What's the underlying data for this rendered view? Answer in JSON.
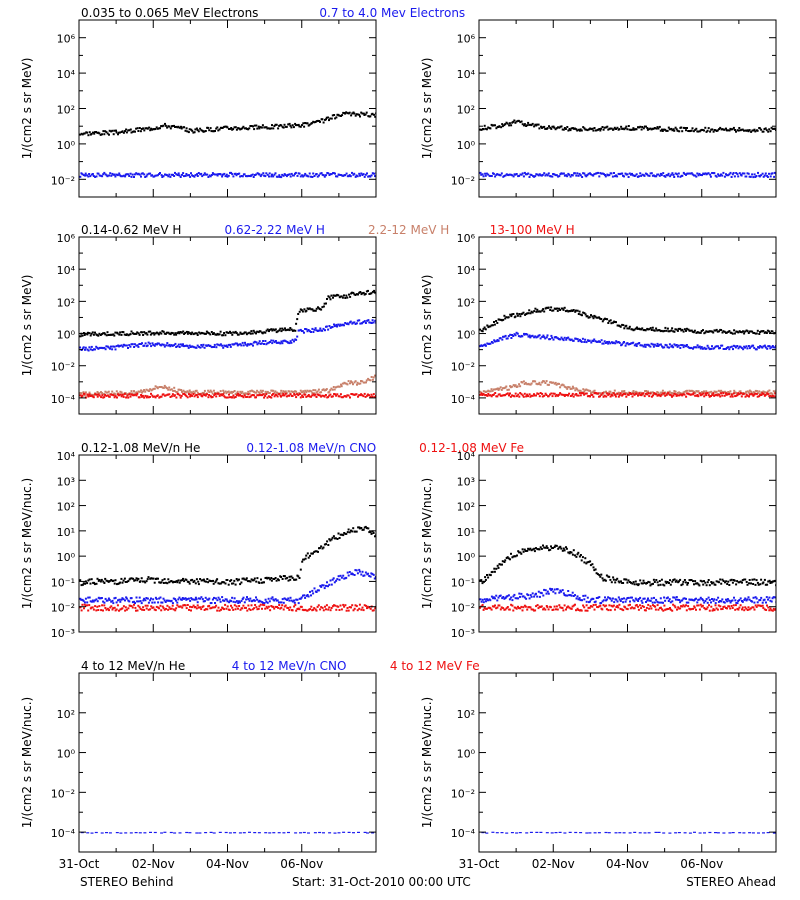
{
  "colors": {
    "black": "#000000",
    "blue": "#1a1aee",
    "brown": "#c8806a",
    "red": "#ee1111"
  },
  "footer": {
    "left": "STEREO Behind",
    "center": "Start: 31-Oct-2010 00:00 UTC",
    "right": "STEREO Ahead"
  },
  "x_ticks": [
    "31-Oct",
    "02-Nov",
    "04-Nov",
    "06-Nov"
  ],
  "chart_data": [
    {
      "type": "scatter",
      "row": 0,
      "side": "behind",
      "legend": [
        {
          "label": "0.035 to 0.065 MeV Electrons",
          "color": "#000000"
        },
        {
          "label": "0.7 to 4.0 Mev Electrons",
          "color": "#1a1aee"
        }
      ],
      "ylabel": "1/(cm2 s sr MeV)",
      "yscale": "log",
      "ylim_exp": [
        -3,
        7
      ],
      "ytick_exp": [
        -2,
        0,
        2,
        4,
        6
      ],
      "xlabel": "",
      "xlim_days": [
        0,
        8
      ],
      "series": [
        {
          "color": "#000000",
          "x": [
            0,
            1,
            1.8,
            2.3,
            3,
            4,
            5,
            5.8,
            6.3,
            6.8,
            7.2,
            7.8,
            8
          ],
          "y_exp": [
            0.65,
            0.7,
            0.9,
            1.1,
            0.8,
            0.95,
            1.0,
            1.1,
            1.2,
            1.55,
            1.75,
            1.7,
            1.7
          ]
        },
        {
          "color": "#1a1aee",
          "x": [
            0,
            8
          ],
          "y_exp": [
            -1.7,
            -1.7
          ]
        }
      ]
    },
    {
      "type": "scatter",
      "row": 0,
      "side": "ahead",
      "legend": [],
      "ylabel": "1/(cm2 s sr MeV)",
      "yscale": "log",
      "ylim_exp": [
        -3,
        7
      ],
      "ytick_exp": [
        -2,
        0,
        2,
        4,
        6
      ],
      "xlabel": "",
      "xlim_days": [
        0,
        8
      ],
      "series": [
        {
          "color": "#000000",
          "x": [
            0,
            0.5,
            1,
            1.4,
            2,
            3,
            4,
            5,
            6,
            7,
            8
          ],
          "y_exp": [
            0.95,
            1.05,
            1.3,
            1.1,
            0.95,
            0.9,
            0.95,
            0.9,
            0.85,
            0.85,
            0.85
          ]
        },
        {
          "color": "#1a1aee",
          "x": [
            0,
            8
          ],
          "y_exp": [
            -1.7,
            -1.7
          ]
        }
      ]
    },
    {
      "type": "scatter",
      "row": 1,
      "side": "behind",
      "legend": [
        {
          "label": "0.14-0.62 MeV H",
          "color": "#000000"
        },
        {
          "label": "0.62-2.22 MeV H",
          "color": "#1a1aee"
        },
        {
          "label": "2.2-12 MeV H",
          "color": "#c8806a"
        },
        {
          "label": "13-100 MeV H",
          "color": "#ee1111"
        }
      ],
      "ylabel": "1/(cm2 s sr MeV)",
      "yscale": "log",
      "ylim_exp": [
        -5,
        6
      ],
      "ytick_exp": [
        -4,
        -2,
        0,
        2,
        4,
        6
      ],
      "xlabel": "",
      "xlim_days": [
        0,
        8
      ],
      "series": [
        {
          "color": "#000000",
          "x": [
            0,
            1,
            2,
            3,
            4,
            5,
            5.8,
            5.9,
            6.5,
            6.7,
            7.2,
            7.5,
            8
          ],
          "y_exp": [
            0.0,
            0.05,
            0.1,
            0.1,
            0.05,
            0.2,
            0.35,
            1.5,
            1.6,
            2.3,
            2.4,
            2.6,
            2.6
          ]
        },
        {
          "color": "#1a1aee",
          "x": [
            0,
            1,
            1.8,
            2.5,
            3,
            4,
            5,
            5.8,
            5.9,
            6.5,
            6.8,
            7.5,
            8
          ],
          "y_exp": [
            -0.9,
            -0.8,
            -0.6,
            -0.65,
            -0.75,
            -0.7,
            -0.5,
            -0.4,
            0.2,
            0.3,
            0.5,
            0.8,
            0.8
          ]
        },
        {
          "color": "#c8806a",
          "x": [
            0,
            1.5,
            2.2,
            2.8,
            4,
            6,
            6.7,
            7.2,
            7.6,
            8
          ],
          "y_exp": [
            -3.7,
            -3.6,
            -3.2,
            -3.6,
            -3.6,
            -3.6,
            -3.5,
            -3.0,
            -3.0,
            -2.6
          ]
        },
        {
          "color": "#ee1111",
          "x": [
            0,
            8
          ],
          "y_exp": [
            -3.8,
            -3.8
          ]
        }
      ]
    },
    {
      "type": "scatter",
      "row": 1,
      "side": "ahead",
      "legend": [],
      "ylabel": "1/(cm2 s sr MeV)",
      "yscale": "log",
      "ylim_exp": [
        -5,
        6
      ],
      "ytick_exp": [
        -4,
        -2,
        0,
        2,
        4,
        6
      ],
      "xlabel": "",
      "xlim_days": [
        0,
        8
      ],
      "series": [
        {
          "color": "#000000",
          "x": [
            0,
            0.3,
            0.7,
            1,
            1.5,
            2,
            2.5,
            3,
            3.5,
            4,
            5,
            6,
            7,
            8
          ],
          "y_exp": [
            0.2,
            0.6,
            1.1,
            1.2,
            1.5,
            1.6,
            1.5,
            1.1,
            0.8,
            0.4,
            0.3,
            0.2,
            0.15,
            0.15
          ]
        },
        {
          "color": "#1a1aee",
          "x": [
            0,
            0.5,
            1,
            1.5,
            2,
            3,
            4,
            5,
            6,
            7,
            8
          ],
          "y_exp": [
            -0.8,
            -0.3,
            0.0,
            -0.1,
            -0.2,
            -0.4,
            -0.6,
            -0.7,
            -0.8,
            -0.8,
            -0.8
          ]
        },
        {
          "color": "#c8806a",
          "x": [
            0,
            0.8,
            1.2,
            1.8,
            2.2,
            3,
            8
          ],
          "y_exp": [
            -3.6,
            -3.3,
            -3.0,
            -3.0,
            -3.2,
            -3.6,
            -3.6
          ]
        },
        {
          "color": "#ee1111",
          "x": [
            0,
            8
          ],
          "y_exp": [
            -3.75,
            -3.75
          ]
        }
      ]
    },
    {
      "type": "scatter",
      "row": 2,
      "side": "behind",
      "legend": [
        {
          "label": "0.12-1.08 MeV/n He",
          "color": "#000000"
        },
        {
          "label": "0.12-1.08 MeV/n CNO",
          "color": "#1a1aee"
        },
        {
          "label": "0.12-1.08 MeV Fe",
          "color": "#ee1111"
        }
      ],
      "ylabel": "1/(cm2 s sr MeV/nuc.)",
      "yscale": "log",
      "ylim_exp": [
        -3,
        4
      ],
      "ytick_exp": [
        -3,
        -2,
        -1,
        0,
        1,
        2,
        3,
        4
      ],
      "xlabel": "",
      "xlim_days": [
        0,
        8
      ],
      "series": [
        {
          "color": "#000000",
          "x": [
            0,
            2,
            4,
            5.9,
            6,
            6.4,
            6.8,
            7.2,
            7.6,
            8
          ],
          "y_exp": [
            -1.0,
            -0.9,
            -1.0,
            -0.8,
            -0.1,
            0.3,
            0.7,
            1.0,
            1.2,
            0.9
          ]
        },
        {
          "color": "#1a1aee",
          "x": [
            0,
            5.9,
            6,
            6.5,
            7,
            7.5,
            8
          ],
          "y_exp": [
            -1.7,
            -1.7,
            -1.6,
            -1.2,
            -0.8,
            -0.6,
            -0.8
          ]
        },
        {
          "color": "#ee1111",
          "x": [
            0,
            8
          ],
          "y_exp": [
            -2.0,
            -2.0
          ]
        }
      ]
    },
    {
      "type": "scatter",
      "row": 2,
      "side": "ahead",
      "legend": [],
      "ylabel": "1/(cm2 s sr MeV/nuc.)",
      "yscale": "log",
      "ylim_exp": [
        -3,
        4
      ],
      "ytick_exp": [
        -3,
        -2,
        -1,
        0,
        1,
        2,
        3,
        4
      ],
      "xlabel": "",
      "xlim_days": [
        0,
        8
      ],
      "series": [
        {
          "color": "#000000",
          "x": [
            0,
            0.5,
            0.9,
            1.3,
            2,
            2.5,
            3,
            3.3,
            4,
            5,
            6,
            8
          ],
          "y_exp": [
            -1.0,
            -0.4,
            0.1,
            0.3,
            0.4,
            0.2,
            -0.3,
            -0.8,
            -1.0,
            -1.0,
            -1.0,
            -1.0
          ]
        },
        {
          "color": "#1a1aee",
          "x": [
            0,
            1.5,
            2,
            2.5,
            3,
            8
          ],
          "y_exp": [
            -1.7,
            -1.5,
            -1.3,
            -1.5,
            -1.7,
            -1.7
          ]
        },
        {
          "color": "#ee1111",
          "x": [
            0,
            8
          ],
          "y_exp": [
            -2.0,
            -2.0
          ]
        }
      ]
    },
    {
      "type": "scatter",
      "row": 3,
      "side": "behind",
      "legend": [
        {
          "label": "4 to 12 MeV/n He",
          "color": "#000000"
        },
        {
          "label": "4 to 12 MeV/n CNO",
          "color": "#1a1aee"
        },
        {
          "label": "4 to 12 MeV Fe",
          "color": "#ee1111"
        }
      ],
      "ylabel": "1/(cm2 s sr MeV/nuc.)",
      "yscale": "log",
      "ylim_exp": [
        -5,
        4
      ],
      "ytick_exp": [
        -4,
        -2,
        0,
        2
      ],
      "xlabel": "",
      "xlim_days": [
        0,
        8
      ],
      "series": [
        {
          "color": "#1a1aee",
          "x": [
            0,
            8
          ],
          "y_exp": [
            -4.0,
            -4.0
          ]
        }
      ]
    },
    {
      "type": "scatter",
      "row": 3,
      "side": "ahead",
      "legend": [],
      "ylabel": "1/(cm2 s sr MeV/nuc.)",
      "yscale": "log",
      "ylim_exp": [
        -5,
        4
      ],
      "ytick_exp": [
        -4,
        -2,
        0,
        2
      ],
      "xlabel": "",
      "xlim_days": [
        0,
        8
      ],
      "series": [
        {
          "color": "#1a1aee",
          "x": [
            0,
            8
          ],
          "y_exp": [
            -4.0,
            -4.0
          ]
        }
      ]
    }
  ]
}
